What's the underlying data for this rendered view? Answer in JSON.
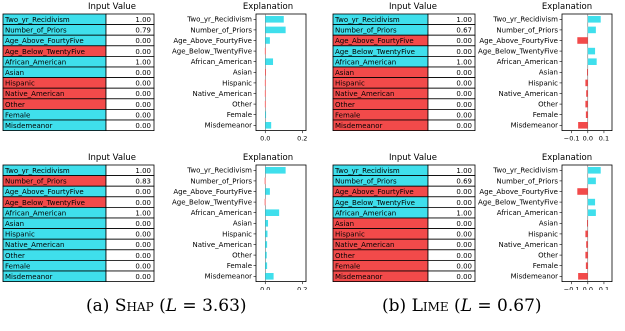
{
  "colors": {
    "positive": "#3fdfec",
    "negative": "#f24a4a",
    "border": "#000000"
  },
  "captions": [
    {
      "prefix": "(a) ",
      "method": "Shap",
      "open": " (",
      "var": "L",
      "rel": " = 3.63)"
    },
    {
      "prefix": "(b) ",
      "method": "Lime",
      "open": " (",
      "var": "L",
      "rel": " = 0.67)"
    }
  ],
  "chart_data": [
    {
      "type": "bar",
      "orientation": "horizontal",
      "table_header": "Input Value",
      "title": "Explanation",
      "categories": [
        "Two_yr_Recidivism",
        "Number_of_Priors",
        "Age_Above_FourtyFive",
        "Age_Below_TwentyFive",
        "African_American",
        "Asian",
        "Hispanic",
        "Native_American",
        "Other",
        "Female",
        "Misdemeanor"
      ],
      "input_values": [
        "1.00",
        "0.79",
        "0.00",
        "0.00",
        "1.00",
        "0.00",
        "0.00",
        "0.00",
        "0.00",
        "0.00",
        "0.00"
      ],
      "cell_signs": [
        "pos",
        "pos",
        "pos",
        "neg",
        "pos",
        "pos",
        "neg",
        "neg",
        "neg",
        "pos",
        "pos"
      ],
      "values": [
        0.1,
        0.11,
        0.025,
        -0.002,
        0.042,
        -0.001,
        -0.002,
        -0.002,
        -0.002,
        0.004,
        0.032
      ],
      "xlim": [
        -0.05,
        0.22
      ],
      "xticks": [
        0.0,
        0.2
      ],
      "tick_labels": [
        "0.0",
        "0.2"
      ]
    },
    {
      "type": "bar",
      "orientation": "horizontal",
      "table_header": "Input Value",
      "title": "Explanation",
      "categories": [
        "Two_yr_Recidivism",
        "Number_of_Priors",
        "Age_Above_FourtyFive",
        "Age_Below_TwentyFive",
        "African_American",
        "Asian",
        "Hispanic",
        "Native_American",
        "Other",
        "Female",
        "Misdemeanor"
      ],
      "input_values": [
        "1.00",
        "0.67",
        "0.00",
        "0.00",
        "1.00",
        "0.00",
        "0.00",
        "0.00",
        "0.00",
        "0.00",
        "0.00"
      ],
      "cell_signs": [
        "pos",
        "pos",
        "neg",
        "pos",
        "pos",
        "neg",
        "neg",
        "neg",
        "neg",
        "neg",
        "neg"
      ],
      "values": [
        0.08,
        0.05,
        -0.065,
        0.045,
        0.055,
        -0.005,
        -0.015,
        -0.01,
        -0.015,
        -0.012,
        -0.06
      ],
      "xlim": [
        -0.16,
        0.15
      ],
      "xticks": [
        -0.1,
        0.0,
        0.1
      ],
      "tick_labels": [
        "−0.1",
        "0.0",
        "0.1"
      ]
    },
    {
      "type": "bar",
      "orientation": "horizontal",
      "table_header": "Input Value",
      "title": "Explanation",
      "categories": [
        "Two_yr_Recidivism",
        "Number_of_Priors",
        "Age_Above_FourtyFive",
        "Age_Below_TwentyFive",
        "African_American",
        "Asian",
        "Hispanic",
        "Native_American",
        "Other",
        "Female",
        "Misdemeanor"
      ],
      "input_values": [
        "1.00",
        "0.83",
        "0.00",
        "0.00",
        "1.00",
        "0.00",
        "0.00",
        "0.00",
        "0.00",
        "0.00",
        "0.00"
      ],
      "cell_signs": [
        "pos",
        "neg",
        "pos",
        "neg",
        "pos",
        "pos",
        "pos",
        "pos",
        "pos",
        "pos",
        "pos"
      ],
      "values": [
        0.11,
        -0.003,
        0.025,
        -0.003,
        0.075,
        0.015,
        0.012,
        0.01,
        0.008,
        0.01,
        0.045
      ],
      "xlim": [
        -0.05,
        0.22
      ],
      "xticks": [
        0.0,
        0.2
      ],
      "tick_labels": [
        "0.0",
        "0.2"
      ]
    },
    {
      "type": "bar",
      "orientation": "horizontal",
      "table_header": "Input Value",
      "title": "Explanation",
      "categories": [
        "Two_yr_Recidivism",
        "Number_of_Priors",
        "Age_Above_FourtyFive",
        "Age_Below_TwentyFive",
        "African_American",
        "Asian",
        "Hispanic",
        "Native_American",
        "Other",
        "Female",
        "Misdemeanor"
      ],
      "input_values": [
        "1.00",
        "0.69",
        "0.00",
        "0.00",
        "1.00",
        "0.00",
        "0.00",
        "0.00",
        "0.00",
        "0.00",
        "0.00"
      ],
      "cell_signs": [
        "pos",
        "pos",
        "neg",
        "pos",
        "pos",
        "neg",
        "neg",
        "neg",
        "neg",
        "neg",
        "neg"
      ],
      "values": [
        0.08,
        0.05,
        -0.065,
        0.045,
        0.05,
        -0.005,
        -0.015,
        -0.01,
        -0.015,
        -0.012,
        -0.06
      ],
      "xlim": [
        -0.16,
        0.15
      ],
      "xticks": [
        -0.1,
        0.0,
        0.1
      ],
      "tick_labels": [
        "−0.1",
        "0.0",
        "0.1"
      ]
    }
  ]
}
